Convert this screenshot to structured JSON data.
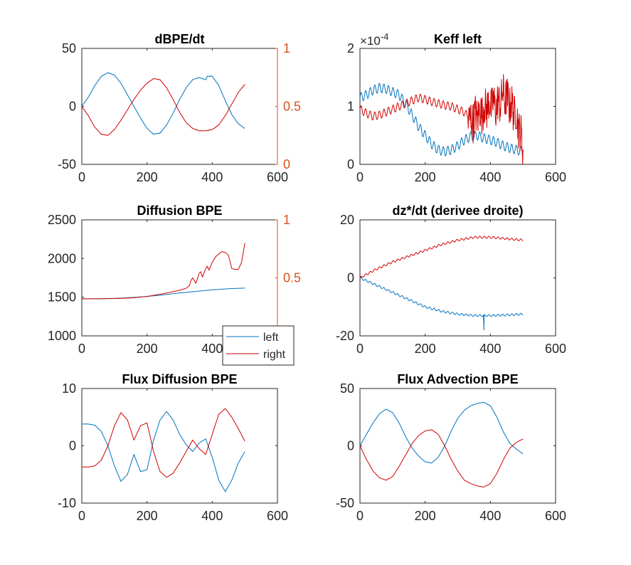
{
  "figure": {
    "background": "#ffffff",
    "colors": {
      "left": "#0072bd",
      "right": "#d00000",
      "right_axis": "#d95319",
      "axis": "#262626"
    }
  },
  "legend": {
    "entries": [
      "left",
      "right"
    ],
    "placement": "bottom-right of Diffusion BPE panel"
  },
  "chart_data": [
    {
      "type": "line",
      "title": "dBPE/dt",
      "xlabel": "",
      "ylabel": "",
      "xlim": [
        0,
        600
      ],
      "ylim": [
        -50,
        50
      ],
      "xticks": [
        0,
        200,
        400,
        600
      ],
      "yticks": [
        -50,
        0,
        50
      ],
      "y2lim": [
        0,
        1
      ],
      "y2ticks": [
        0,
        0.5,
        1
      ],
      "grid": false,
      "series": [
        {
          "key": "left",
          "axis": "left",
          "noise": 0.3,
          "x": [
            0,
            20,
            40,
            60,
            80,
            100,
            120,
            140,
            160,
            180,
            200,
            220,
            240,
            260,
            280,
            300,
            320,
            340,
            360,
            370,
            380,
            385,
            400,
            420,
            440,
            460,
            480,
            500
          ],
          "y": [
            0,
            8,
            18,
            26,
            29,
            27,
            20,
            10,
            0,
            -10,
            -19,
            -24,
            -23,
            -16,
            -6,
            6,
            16,
            23,
            25,
            24,
            23,
            26,
            26,
            18,
            5,
            -7,
            -15,
            -19
          ]
        },
        {
          "key": "right",
          "axis": "left",
          "noise": 0.3,
          "x": [
            0,
            20,
            40,
            60,
            80,
            100,
            120,
            140,
            160,
            180,
            200,
            220,
            240,
            260,
            280,
            300,
            320,
            340,
            360,
            380,
            400,
            420,
            440,
            460,
            480,
            500
          ],
          "y": [
            0,
            -8,
            -18,
            -24,
            -25,
            -20,
            -12,
            -3,
            6,
            14,
            20,
            24,
            23,
            16,
            6,
            -5,
            -14,
            -19,
            -21,
            -21,
            -20,
            -16,
            -8,
            2,
            12,
            19
          ]
        }
      ]
    },
    {
      "type": "line",
      "title": "Keff left",
      "xlabel": "",
      "ylabel": "",
      "xlim": [
        0,
        600
      ],
      "ylim": [
        0,
        2
      ],
      "xticks": [
        0,
        200,
        400,
        600
      ],
      "yticks": [
        0,
        1,
        2
      ],
      "exponent_label": "×10",
      "exponent_power": "-4",
      "grid": false,
      "series": [
        {
          "key": "left",
          "axis": "left",
          "osc_amp": 0.08,
          "osc_period": 14,
          "x": [
            0,
            20,
            40,
            60,
            80,
            100,
            120,
            140,
            160,
            180,
            200,
            220,
            240,
            260,
            280,
            300,
            320,
            340,
            360,
            380,
            400,
            420,
            440,
            460,
            480,
            500
          ],
          "y": [
            1.15,
            1.2,
            1.28,
            1.32,
            1.3,
            1.25,
            1.2,
            1.05,
            0.85,
            0.65,
            0.5,
            0.35,
            0.25,
            0.22,
            0.25,
            0.32,
            0.42,
            0.48,
            0.5,
            0.45,
            0.42,
            0.38,
            0.32,
            0.28,
            0.25,
            0.22
          ]
        },
        {
          "key": "right",
          "axis": "left",
          "osc_amp": 0.07,
          "osc_period": 14,
          "noise_from": 330,
          "noise_amp": 0.35,
          "x": [
            0,
            20,
            40,
            60,
            80,
            100,
            120,
            140,
            160,
            180,
            200,
            220,
            240,
            260,
            280,
            300,
            320,
            340,
            360,
            380,
            400,
            420,
            440,
            460,
            480,
            500
          ],
          "y": [
            0.95,
            0.88,
            0.83,
            0.85,
            0.9,
            0.95,
            1.0,
            1.05,
            1.1,
            1.15,
            1.12,
            1.08,
            1.05,
            1.02,
            1.0,
            0.95,
            0.9,
            0.75,
            0.85,
            0.95,
            1.05,
            1.0,
            1.2,
            1.05,
            0.85,
            0.3
          ]
        }
      ]
    },
    {
      "type": "line",
      "title": "Diffusion BPE",
      "xlabel": "",
      "ylabel": "",
      "xlim": [
        0,
        600
      ],
      "ylim": [
        1000,
        2500
      ],
      "xticks": [
        0,
        200,
        400,
        600
      ],
      "yticks": [
        1000,
        1500,
        2000,
        2500
      ],
      "y2lim": [
        0,
        1
      ],
      "y2ticks": [
        0.5,
        1
      ],
      "grid": false,
      "series": [
        {
          "key": "left",
          "axis": "left",
          "x": [
            0,
            50,
            100,
            150,
            200,
            250,
            300,
            350,
            400,
            450,
            500
          ],
          "y": [
            1480,
            1480,
            1485,
            1495,
            1510,
            1530,
            1555,
            1575,
            1595,
            1610,
            1618
          ]
        },
        {
          "key": "right",
          "axis": "left",
          "x": [
            0,
            50,
            100,
            150,
            200,
            250,
            300,
            320,
            330,
            335,
            340,
            350,
            360,
            365,
            370,
            380,
            385,
            390,
            400,
            410,
            420,
            430,
            440,
            450,
            460,
            470,
            480,
            490,
            500
          ],
          "y": [
            1480,
            1480,
            1483,
            1490,
            1510,
            1545,
            1590,
            1615,
            1650,
            1720,
            1750,
            1680,
            1810,
            1830,
            1760,
            1870,
            1900,
            1850,
            1950,
            2020,
            2060,
            2090,
            2080,
            2040,
            1870,
            1860,
            1860,
            1950,
            2200
          ]
        }
      ]
    },
    {
      "type": "line",
      "title": "dz*/dt (derivee droite)",
      "xlabel": "",
      "ylabel": "",
      "xlim": [
        0,
        600
      ],
      "ylim": [
        -20,
        20
      ],
      "xticks": [
        0,
        200,
        400,
        600
      ],
      "yticks": [
        -20,
        0,
        20
      ],
      "grid": false,
      "series": [
        {
          "key": "left",
          "axis": "left",
          "osc_amp": 0.35,
          "osc_period": 14,
          "spike_x": 380,
          "spike_y": -18,
          "x": [
            0,
            50,
            100,
            150,
            200,
            250,
            300,
            350,
            400,
            450,
            500
          ],
          "y": [
            0,
            -2.5,
            -5,
            -7.5,
            -10,
            -11.5,
            -12.5,
            -13,
            -13,
            -12.8,
            -12.5
          ]
        },
        {
          "key": "right",
          "axis": "left",
          "osc_amp": 0.35,
          "osc_period": 14,
          "x": [
            0,
            50,
            100,
            150,
            200,
            250,
            300,
            350,
            400,
            450,
            500
          ],
          "y": [
            0,
            3,
            5.5,
            7.5,
            9.5,
            11.5,
            13,
            14,
            14,
            13.5,
            13
          ]
        }
      ]
    },
    {
      "type": "line",
      "title": "Flux Diffusion BPE",
      "xlabel": "",
      "ylabel": "",
      "xlim": [
        0,
        600
      ],
      "ylim": [
        -10,
        10
      ],
      "xticks": [
        0,
        200,
        400,
        600
      ],
      "yticks": [
        -10,
        0,
        10
      ],
      "grid": false,
      "series": [
        {
          "key": "left",
          "axis": "left",
          "x": [
            0,
            20,
            40,
            60,
            80,
            100,
            120,
            140,
            160,
            180,
            200,
            220,
            240,
            260,
            280,
            300,
            320,
            340,
            360,
            380,
            400,
            420,
            440,
            460,
            480,
            500
          ],
          "y": [
            3.8,
            3.8,
            3.6,
            2.5,
            0,
            -3.5,
            -6.2,
            -5.0,
            -1.5,
            -4.5,
            -4.2,
            1,
            4.5,
            6.0,
            4.5,
            2,
            0.2,
            -1.0,
            0.5,
            1.2,
            -2,
            -6,
            -8.0,
            -6,
            -3,
            -1.0
          ]
        },
        {
          "key": "right",
          "axis": "left",
          "x": [
            0,
            20,
            40,
            60,
            80,
            100,
            120,
            140,
            160,
            180,
            200,
            220,
            240,
            260,
            280,
            300,
            320,
            340,
            360,
            380,
            400,
            420,
            440,
            460,
            480,
            500
          ],
          "y": [
            -3.7,
            -3.7,
            -3.5,
            -2.5,
            0,
            3.5,
            5.8,
            4.5,
            1.0,
            3.5,
            4.0,
            -1,
            -4.5,
            -5.5,
            -4.8,
            -3,
            -1.0,
            1.0,
            -0.5,
            -1.5,
            2,
            5.5,
            6.5,
            5,
            3,
            0.8
          ]
        }
      ]
    },
    {
      "type": "line",
      "title": "Flux Advection BPE",
      "xlabel": "",
      "ylabel": "",
      "xlim": [
        0,
        600
      ],
      "ylim": [
        -50,
        50
      ],
      "xticks": [
        0,
        200,
        400,
        600
      ],
      "yticks": [
        -50,
        0,
        50
      ],
      "grid": false,
      "series": [
        {
          "key": "left",
          "axis": "left",
          "x": [
            0,
            20,
            40,
            60,
            80,
            100,
            120,
            140,
            160,
            180,
            200,
            220,
            240,
            260,
            280,
            300,
            320,
            340,
            360,
            380,
            400,
            420,
            440,
            460,
            480,
            500
          ],
          "y": [
            0,
            10,
            20,
            28,
            32,
            29,
            20,
            8,
            -2,
            -9,
            -14,
            -15,
            -10,
            0,
            13,
            24,
            31,
            35,
            37,
            38,
            35,
            25,
            12,
            2,
            -3,
            -7
          ]
        },
        {
          "key": "right",
          "axis": "left",
          "x": [
            0,
            20,
            40,
            60,
            80,
            100,
            120,
            140,
            160,
            180,
            200,
            220,
            240,
            260,
            280,
            300,
            320,
            340,
            360,
            380,
            400,
            420,
            440,
            460,
            480,
            500
          ],
          "y": [
            0,
            -12,
            -22,
            -28,
            -30,
            -27,
            -18,
            -8,
            2,
            9,
            13,
            14,
            10,
            0,
            -12,
            -22,
            -30,
            -33,
            -35,
            -36,
            -33,
            -24,
            -12,
            -2,
            3,
            6
          ]
        }
      ]
    }
  ]
}
